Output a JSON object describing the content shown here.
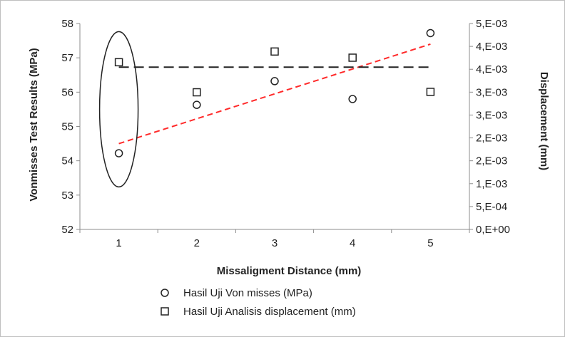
{
  "chart_data": {
    "type": "scatter",
    "x": [
      1,
      2,
      3,
      4,
      5
    ],
    "xlabel": "Missaligment Distance (mm)",
    "ylabel": "Vonmisses Test Results (MPa)",
    "y2label": "Displacement (mm)",
    "ylim": [
      52,
      58
    ],
    "y2lim": [
      0,
      0.005
    ],
    "xticks": [
      "1",
      "2",
      "3",
      "4",
      "5"
    ],
    "yticks": [
      "52",
      "53",
      "54",
      "55",
      "56",
      "57",
      "58"
    ],
    "y2ticks": [
      "0,E+00",
      "5,E-04",
      "1,E-03",
      "2,E-03",
      "2,E-03",
      "3,E-03",
      "3,E-03",
      "4,E-03",
      "4,E-03",
      "5,E-03"
    ],
    "series": [
      {
        "name": "Hasil Uji Von misses  (MPa)",
        "marker": "circle",
        "axis": "left",
        "values": [
          54.22,
          55.63,
          56.32,
          55.8,
          57.72
        ],
        "trendline": {
          "type": "linear",
          "color": "#ff2a2a",
          "from": 54.5,
          "to": 57.4
        }
      },
      {
        "name": "Hasil Uji Analisis displacement (mm)",
        "marker": "square",
        "axis": "right",
        "values": [
          0.00406,
          0.00333,
          0.00432,
          0.00417,
          0.00334
        ],
        "trendline": {
          "type": "linear",
          "color": "#222222",
          "from": 0.00394,
          "to": 0.00394
        }
      }
    ],
    "annotations": [
      {
        "shape": "ellipse",
        "around_x": 1
      }
    ],
    "grid": false,
    "legend_position": "bottom"
  }
}
